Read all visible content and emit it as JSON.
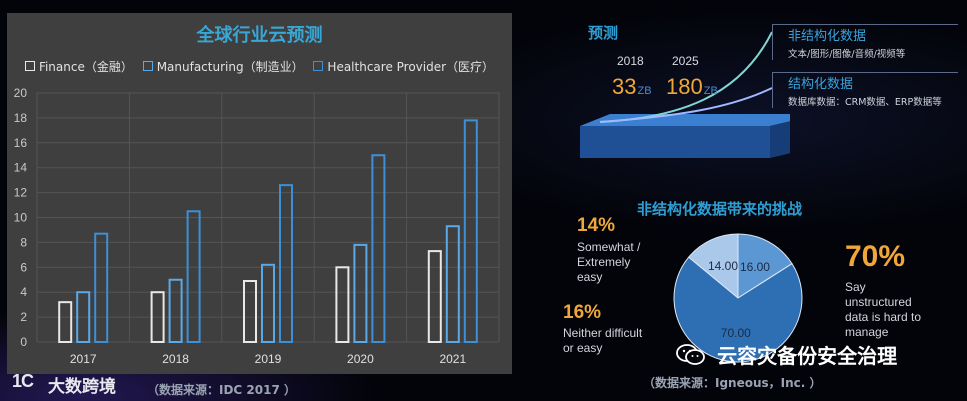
{
  "chart_data": [
    {
      "type": "bar",
      "title": "全球行业云预测",
      "categories": [
        "2017",
        "2018",
        "2019",
        "2020",
        "2021"
      ],
      "series": [
        {
          "name": "Finance（金融）",
          "values": [
            3.2,
            4.0,
            4.9,
            6.0,
            7.3
          ],
          "color": "#e8e8e8"
        },
        {
          "name": "Manufacturing（制造业）",
          "values": [
            4.0,
            5.0,
            6.2,
            7.8,
            9.3
          ],
          "color": "#5aa9e6"
        },
        {
          "name": "Healthcare Provider（医疗）",
          "values": [
            8.7,
            10.5,
            12.6,
            15.0,
            17.8
          ],
          "color": "#3f8fd6"
        }
      ],
      "yticks": [
        "0",
        "2",
        "4",
        "6",
        "8",
        "10",
        "12",
        "14",
        "16",
        "18",
        "20"
      ],
      "ylim": [
        0,
        20
      ],
      "grid": true,
      "legend": "top"
    },
    {
      "type": "pie",
      "title": "非结构化数据带来的挑战",
      "slices": [
        {
          "label": "Say unstructured data is hard to manage",
          "value": 70.0,
          "display": "70.00",
          "color": "#2e6fb3"
        },
        {
          "label": "Neither difficult or easy",
          "value": 16.0,
          "display": "16.00",
          "color": "#5b97d3"
        },
        {
          "label": "Somewhat / Extremely easy",
          "value": 14.0,
          "display": "14.00",
          "color": "#a9c8ea"
        }
      ]
    }
  ],
  "forecast": {
    "title": "预测",
    "years": [
      {
        "year": "2018",
        "value": "33",
        "unit": "ZB"
      },
      {
        "year": "2025",
        "value": "180",
        "unit": "ZB"
      }
    ],
    "types": [
      {
        "title": "非结构化数据",
        "desc": "文本/图形/图像/音频/视频等"
      },
      {
        "title": "结构化数据",
        "desc": "数据库数据：CRM数据、ERP数据等"
      }
    ]
  },
  "challenge": {
    "stats": [
      {
        "pct": "14%",
        "desc_lines": [
          "Somewhat /",
          "Extremely",
          "easy"
        ]
      },
      {
        "pct": "16%",
        "desc_lines": [
          "Neither difficult",
          "or easy"
        ]
      }
    ],
    "big_stat": {
      "pct": "70%",
      "desc_lines": [
        "Say",
        "unstructured",
        "data is hard to",
        "manage"
      ]
    }
  },
  "footer": {
    "logo_mark": "1C",
    "logo_text": "大数跨境",
    "source_left": "（数据来源：IDC 2017 ）",
    "source_right": "（数据来源：Igneous，Inc. ）"
  },
  "watermark": {
    "icon": "wechat-icon",
    "text": "云容灾备份安全治理"
  },
  "colors": {
    "accent": "#2f9fd3",
    "highlight": "#f0a73a",
    "panel": "#3f3f3f"
  }
}
